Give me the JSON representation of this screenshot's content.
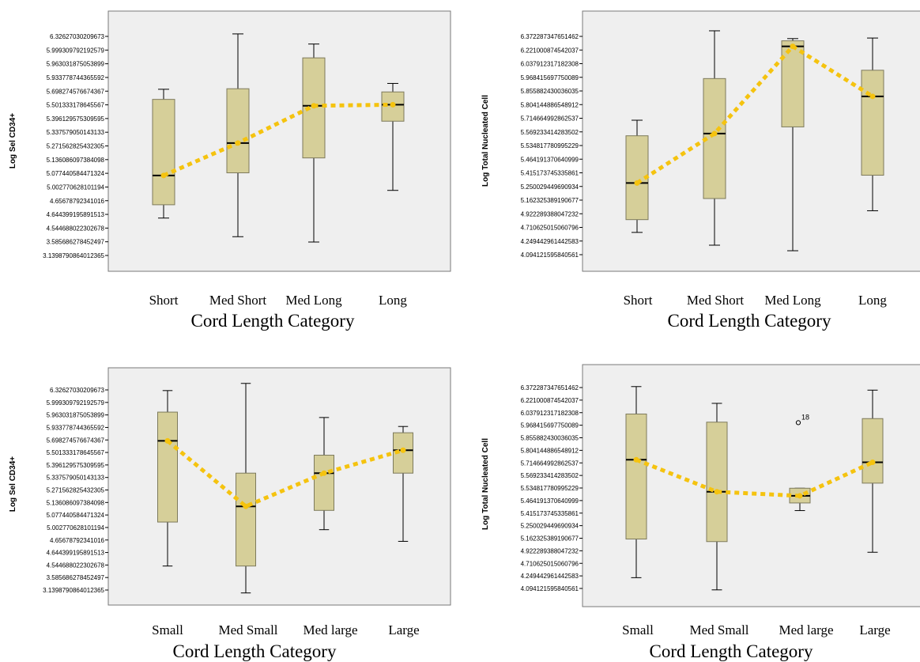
{
  "chart_data": [
    {
      "type": "box",
      "ylabel": "Log Sel CD34+",
      "xlabel": "Cord Length Category",
      "categories": [
        "Short",
        "Med Short",
        "Med Long",
        "Long"
      ],
      "y_ticks": [
        "6.32627030209673",
        "5.999309792192579",
        "5.963031875053899",
        "5.933778744365592",
        "5.698274576674367",
        "5.501333178645567",
        "5.396129575309595",
        "5.337579050143133",
        "5.271562825432305",
        "5.136086097384098",
        "5.077440584471324",
        "5.002770628101194",
        "4.65678792341016",
        "4.644399195891513",
        "4.544688022302678",
        "3.585686278452497",
        "3.1398790864012365"
      ],
      "boxes": [
        {
          "min": 3.1,
          "q1": 3.35,
          "median": 3.9,
          "q3": 5.33,
          "max": 5.52
        },
        {
          "min": 2.75,
          "q1": 3.95,
          "median": 4.51,
          "q3": 5.53,
          "max": 6.56
        },
        {
          "min": 2.65,
          "q1": 4.23,
          "median": 5.21,
          "q3": 6.11,
          "max": 6.37
        },
        {
          "min": 3.62,
          "q1": 4.92,
          "median": 5.23,
          "q3": 5.47,
          "max": 5.63
        }
      ],
      "mean_line": [
        3.9,
        4.51,
        5.21,
        5.23
      ]
    },
    {
      "type": "box",
      "ylabel": "Log Total Nucleated Cell",
      "xlabel": "Cord Length Category",
      "categories": [
        "Short",
        "Med Short",
        "Med Long",
        "Long"
      ],
      "y_ticks": [
        "6.372287347651462",
        "6.221000874542037",
        "6.037912317182308",
        "5.968415697750089",
        "5.855882430036035",
        "5.804144886548912",
        "5.714664992862537",
        "5.569233414283502",
        "5.534817780995229",
        "5.464191370640999",
        "5.415173745335861",
        "5.250029449690934",
        "5.162325389190677",
        "4.922289388047232",
        "4.710625015060796",
        "4.249442961442583",
        "4.094121595840561"
      ],
      "boxes": [
        {
          "min": 4.3,
          "q1": 4.53,
          "median": 5.19,
          "q3": 6.04,
          "max": 6.32
        },
        {
          "min": 4.07,
          "q1": 4.91,
          "median": 6.08,
          "q3": 7.07,
          "max": 7.93
        },
        {
          "min": 3.97,
          "q1": 6.2,
          "median": 7.65,
          "q3": 7.75,
          "max": 7.79
        },
        {
          "min": 4.69,
          "q1": 5.33,
          "median": 6.75,
          "q3": 7.22,
          "max": 7.8
        }
      ],
      "mean_line": [
        5.19,
        6.08,
        7.65,
        6.75
      ]
    },
    {
      "type": "box",
      "ylabel": "Log Sel CD34+",
      "xlabel": "Cord Length Category",
      "categories": [
        "Small",
        "Med Small",
        "Med large",
        "Large"
      ],
      "y_ticks": [
        "6.32627030209673",
        "5.999309792192579",
        "5.963031875053899",
        "5.933778744365592",
        "5.698274576674367",
        "5.501333178645567",
        "5.396129575309595",
        "5.337579050143133",
        "5.271562825432305",
        "5.136086097384098",
        "5.077440584471324",
        "5.002770628101194",
        "4.65678792341016",
        "4.644399195891513",
        "4.544688022302678",
        "3.585686278452497",
        "3.1398790864012365"
      ],
      "boxes": [
        {
          "min": 3.07,
          "q1": 4.05,
          "median": 5.86,
          "q3": 6.5,
          "max": 6.98
        },
        {
          "min": 2.47,
          "q1": 3.07,
          "median": 4.4,
          "q3": 5.14,
          "max": 7.14
        },
        {
          "min": 3.88,
          "q1": 4.31,
          "median": 5.14,
          "q3": 5.54,
          "max": 6.38
        },
        {
          "min": 3.62,
          "q1": 5.14,
          "median": 5.65,
          "q3": 6.04,
          "max": 6.18
        }
      ],
      "mean_line": [
        5.86,
        4.4,
        5.14,
        5.65
      ]
    },
    {
      "type": "box",
      "ylabel": "Log Total Nucleated Cell",
      "xlabel": "Cord Length Category",
      "categories": [
        "Small",
        "Med Small",
        "Med large",
        "Large"
      ],
      "y_ticks": [
        "6.372287347651462",
        "6.221000874542037",
        "6.037912317182308",
        "5.968415697750089",
        "5.855882430036035",
        "5.804144886548912",
        "5.714664992862537",
        "5.569233414283502",
        "5.534817780995229",
        "5.464191370640999",
        "5.415173745335861",
        "5.250029449690934",
        "5.162325389190677",
        "4.922289388047232",
        "4.710625015060796",
        "4.249442961442583",
        "4.094121595840561"
      ],
      "boxes": [
        {
          "min": 4.27,
          "q1": 5.03,
          "median": 6.59,
          "q3": 7.49,
          "max": 8.03
        },
        {
          "min": 4.03,
          "q1": 4.98,
          "median": 5.96,
          "q3": 7.33,
          "max": 7.7
        },
        {
          "min": 5.59,
          "q1": 5.74,
          "median": 5.88,
          "q3": 6.03,
          "max": 6.03
        },
        {
          "min": 4.77,
          "q1": 6.13,
          "median": 6.54,
          "q3": 7.4,
          "max": 7.96
        }
      ],
      "outliers": [
        {
          "category": "Med large",
          "value": 7.32,
          "label": "18"
        }
      ],
      "mean_line": [
        6.59,
        5.96,
        5.88,
        6.54
      ]
    }
  ],
  "colors": {
    "plot_background": "#efefef",
    "box_fill": "#d6cf99",
    "box_stroke": "#7d7a5c",
    "median": "#000000",
    "mean_line": "#f5c30f"
  }
}
